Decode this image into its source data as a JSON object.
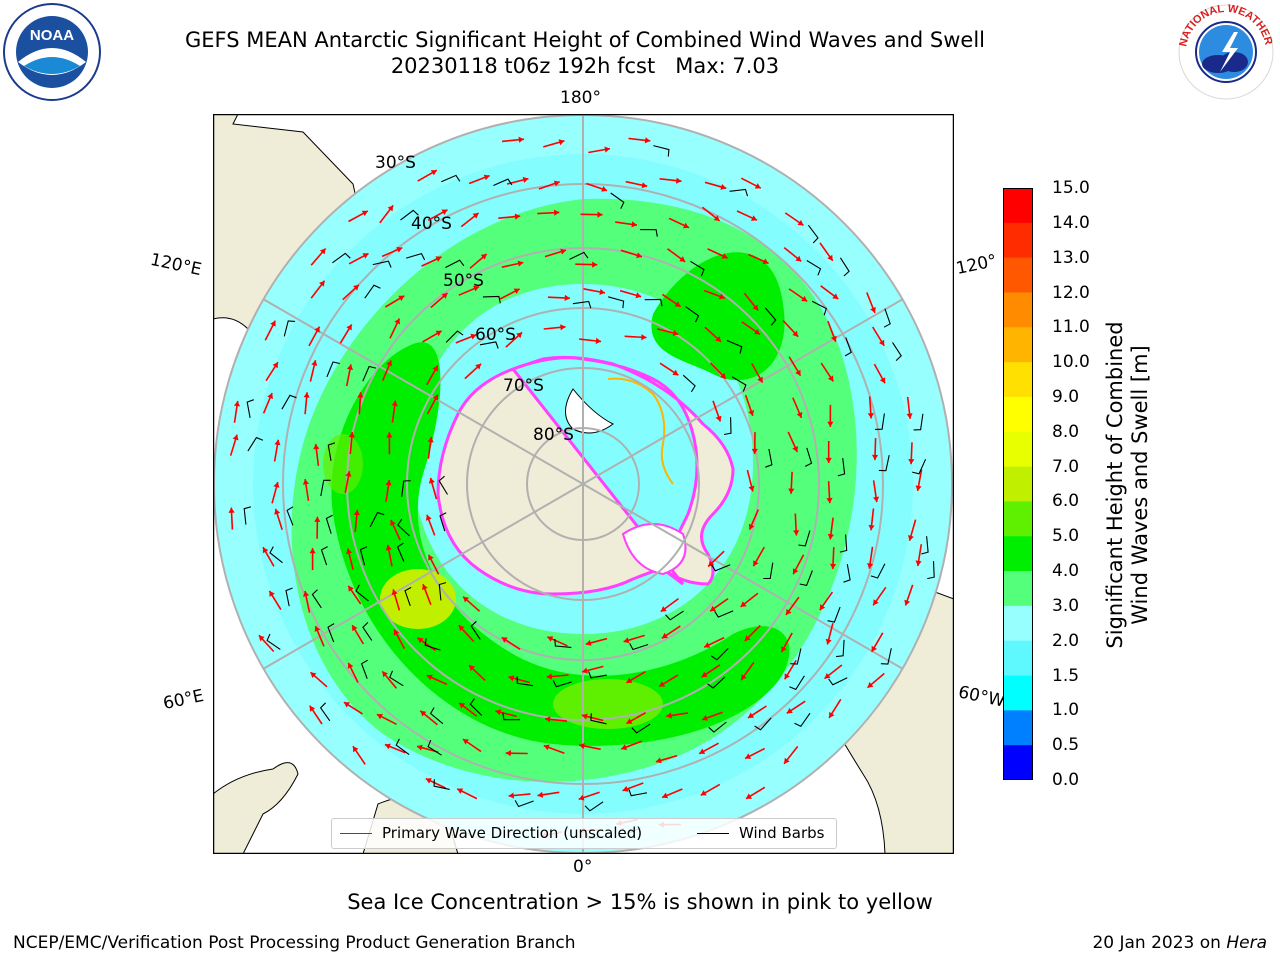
{
  "header": {
    "title_line1": "GEFS MEAN Antarctic Significant Height of Combined Wind Waves and Swell",
    "title_line2": "20230118 t06z 192h fcst   Max: 7.03"
  },
  "logos": {
    "left": "noaa-logo",
    "right": "nws-logo"
  },
  "map": {
    "projection": "south-polar-stereographic",
    "longitude_labels": [
      "180°",
      "120°E",
      "120°",
      "60°E",
      "60°W",
      "0°"
    ],
    "latitude_labels": [
      "30°S",
      "40°S",
      "50°S",
      "60°S",
      "70°S",
      "80°S"
    ],
    "colors": {
      "land": "#efecd8",
      "ocean_0_5": "#0000ff",
      "ocean_1_0": "#007fff",
      "ocean_1_5": "#00ffff",
      "ocean_2_0": "#5ef8ff",
      "ocean_3_0": "#98ffff",
      "ocean_4_0": "#54ff7c",
      "ocean_5_0": "#00ef00",
      "ocean_6_0": "#5ef000",
      "ocean_7_0": "#c0f000",
      "wave_arrow": "#ff0000",
      "wind_barb": "#000000",
      "sea_ice": "#ff40ff",
      "grid": "#b0b0b0"
    }
  },
  "colorbar": {
    "label_line1": "Significant Height of Combined",
    "label_line2": "Wind Waves and Swell [m]",
    "ticks": [
      "15.0",
      "14.0",
      "13.0",
      "12.0",
      "11.0",
      "10.0",
      "9.0",
      "8.0",
      "7.0",
      "6.0",
      "5.0",
      "4.0",
      "3.0",
      "2.0",
      "1.5",
      "1.0",
      "0.5",
      "0.0"
    ],
    "colors": [
      "#ff0000",
      "#ff2c00",
      "#ff5800",
      "#ff8c00",
      "#ffb400",
      "#ffe000",
      "#ffff00",
      "#e8ff00",
      "#c0f000",
      "#5ef000",
      "#00ef00",
      "#54ff7c",
      "#98ffff",
      "#5ef8ff",
      "#00ffff",
      "#007fff",
      "#0000ff"
    ]
  },
  "legend": {
    "wave_label": "Primary Wave Direction (unscaled)",
    "wind_label": "Wind Barbs"
  },
  "notes": {
    "sea_ice": "Sea Ice Concentration > 15% is shown in pink to yellow"
  },
  "footer": {
    "left": "NCEP/EMC/Verification Post Processing Product Generation Branch",
    "date": "20 Jan 2023 on ",
    "machine": "Hera"
  }
}
